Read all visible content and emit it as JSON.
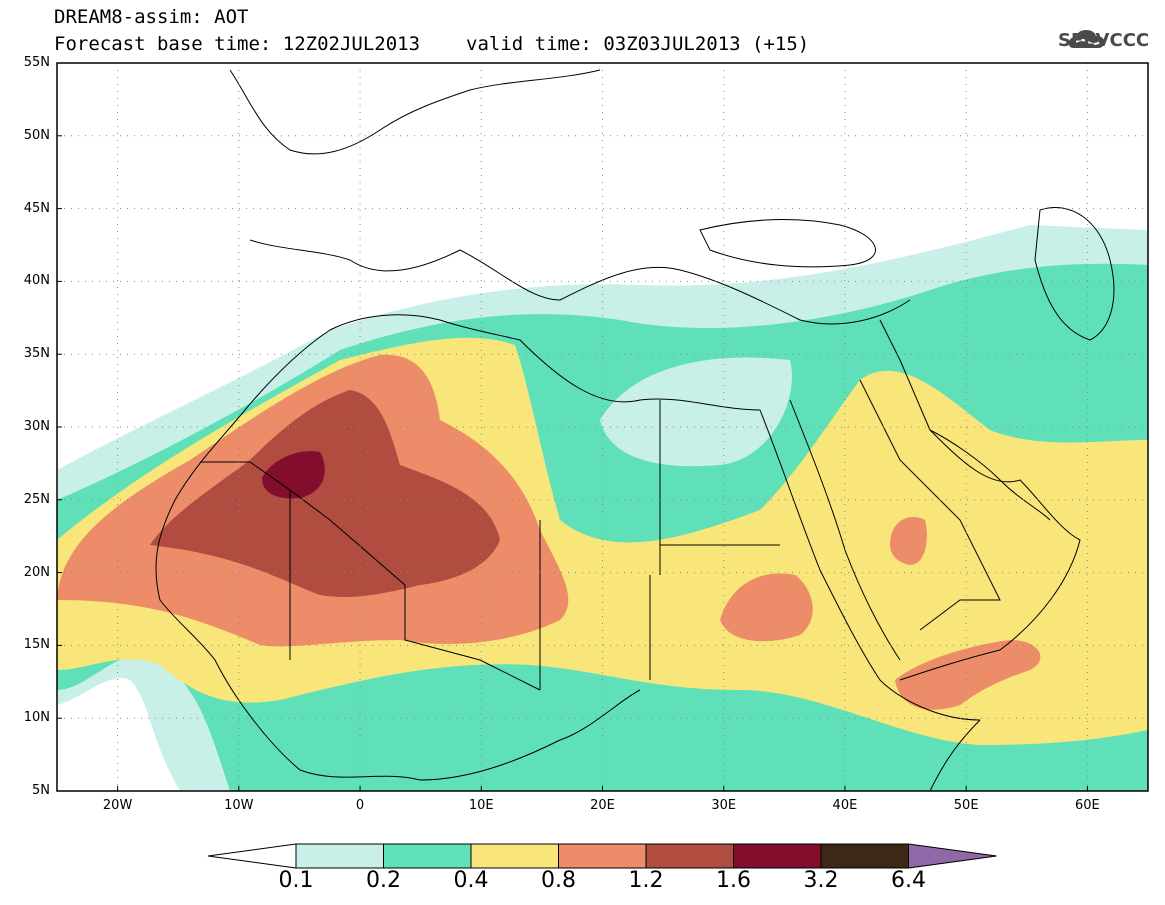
{
  "header": {
    "line1": "DREAM8-assim: AOT",
    "base_time": "Forecast base time: 12Z02JUL2013",
    "valid_time": "valid time: 03Z03JUL2013 (+15)"
  },
  "logo": {
    "text": "SEEVCCC",
    "icon": "cloud-logo-icon"
  },
  "map": {
    "lat_labels": [
      "55N",
      "50N",
      "45N",
      "40N",
      "35N",
      "30N",
      "25N",
      "20N",
      "15N",
      "10N",
      "5N"
    ],
    "lat_values": [
      55,
      50,
      45,
      40,
      35,
      30,
      25,
      20,
      15,
      10,
      5
    ],
    "lon_labels": [
      "20W",
      "10W",
      "0",
      "10E",
      "20E",
      "30E",
      "40E",
      "50E",
      "60E"
    ],
    "lon_values": [
      -20,
      -10,
      0,
      10,
      20,
      30,
      40,
      50,
      60
    ],
    "extent": {
      "lon_min": -25,
      "lon_max": 65,
      "lat_min": 5,
      "lat_max": 55
    }
  },
  "colorbar": {
    "labels": [
      "0.1",
      "0.2",
      "0.4",
      "0.8",
      "1.2",
      "1.6",
      "3.2",
      "6.4"
    ],
    "colors": [
      "#ffffff",
      "#c8f0e8",
      "#5fe0b8",
      "#f8e67a",
      "#ec8c68",
      "#b04c40",
      "#820d2c",
      "#3c2814",
      "#9068a8"
    ]
  }
}
